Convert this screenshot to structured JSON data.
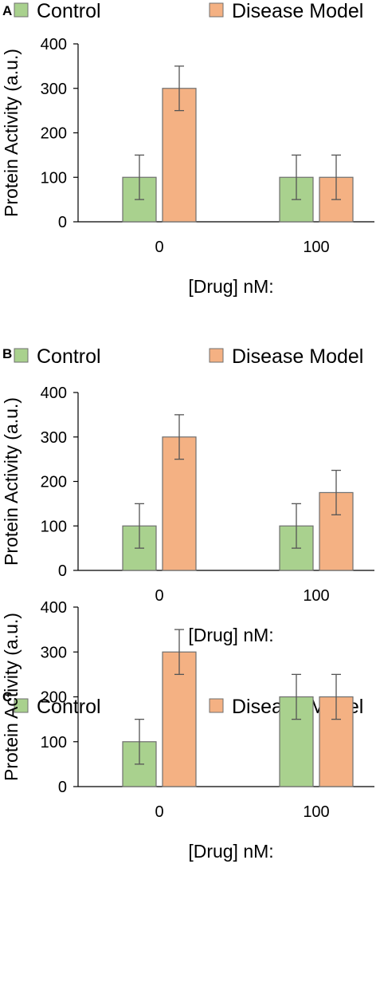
{
  "colors": {
    "control_fill": "#a9d18e",
    "disease_fill": "#f4b183",
    "bar_stroke": "#6f6f6f",
    "axis": "#000000",
    "error_bar": "#555555"
  },
  "chart_data": [
    {
      "panel": "A",
      "type": "bar",
      "categories": [
        "0",
        "100"
      ],
      "series": [
        {
          "name": "Control",
          "values": [
            100,
            100
          ],
          "errors": [
            50,
            50
          ]
        },
        {
          "name": "Disease Model",
          "values": [
            300,
            100
          ],
          "errors": [
            50,
            50
          ]
        }
      ],
      "xlabel": "[Drug] nM:",
      "ylabel": "Protein Activity (a.u.)",
      "ylim": [
        0,
        400
      ],
      "yticks": [
        "0",
        "100",
        "200",
        "300",
        "400"
      ],
      "grid": false,
      "legend_position": "top"
    },
    {
      "panel": "B",
      "type": "bar",
      "categories": [
        "0",
        "100"
      ],
      "series": [
        {
          "name": "Control",
          "values": [
            100,
            100
          ],
          "errors": [
            50,
            50
          ]
        },
        {
          "name": "Disease Model",
          "values": [
            300,
            175
          ],
          "errors": [
            50,
            50
          ]
        }
      ],
      "xlabel": "[Drug] nM:",
      "ylabel": "Protein Activity (a.u.)",
      "ylim": [
        0,
        400
      ],
      "yticks": [
        "0",
        "100",
        "200",
        "300",
        "400"
      ],
      "grid": false,
      "legend_position": "top"
    },
    {
      "panel": "C",
      "type": "bar",
      "categories": [
        "0",
        "100"
      ],
      "series": [
        {
          "name": "Control",
          "values": [
            100,
            200
          ],
          "errors": [
            50,
            50
          ]
        },
        {
          "name": "Disease Model",
          "values": [
            300,
            200
          ],
          "errors": [
            50,
            50
          ]
        }
      ],
      "xlabel": "[Drug] nM:",
      "ylabel": "Protein Activity (a.u.)",
      "ylim": [
        0,
        400
      ],
      "yticks": [
        "0",
        "100",
        "200",
        "300",
        "400"
      ],
      "grid": false,
      "legend_position": "top"
    }
  ]
}
